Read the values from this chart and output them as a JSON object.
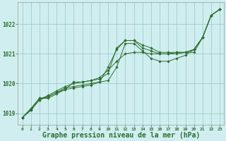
{
  "background_color": "#d0eef0",
  "grid_color": "#a0cccc",
  "line_color": "#2d6e2d",
  "marker_color": "#2d6e2d",
  "xlabel": "Graphe pression niveau de la mer (hPa)",
  "xlabel_fontsize": 7,
  "xlim": [
    -0.5,
    23.5
  ],
  "ylim": [
    1018.6,
    1022.75
  ],
  "yticks": [
    1019,
    1020,
    1021,
    1022
  ],
  "xticks": [
    0,
    1,
    2,
    3,
    4,
    5,
    6,
    7,
    8,
    9,
    10,
    11,
    12,
    13,
    14,
    15,
    16,
    17,
    18,
    19,
    20,
    21,
    22,
    23
  ],
  "series": [
    [
      1018.85,
      1019.1,
      1019.45,
      1019.55,
      1019.7,
      1019.8,
      1019.85,
      1019.9,
      1019.95,
      1020.05,
      1020.55,
      1021.15,
      1021.45,
      1021.45,
      1021.2,
      1021.1,
      1021.0,
      1021.0,
      1021.05,
      1021.05,
      1021.15,
      1021.55,
      1022.3,
      1022.5
    ],
    [
      1018.85,
      1019.1,
      1019.45,
      1019.6,
      1019.75,
      1019.9,
      1020.0,
      1020.05,
      1020.1,
      1020.2,
      1020.45,
      1020.75,
      1021.0,
      1021.05,
      1021.05,
      1021.0,
      1021.0,
      1021.0,
      1021.0,
      1021.05,
      1021.15,
      1021.55,
      1022.3,
      1022.5
    ],
    [
      1018.85,
      1019.15,
      1019.5,
      1019.55,
      1019.7,
      1019.85,
      1019.9,
      1019.95,
      1020.0,
      1020.05,
      1020.1,
      1020.55,
      1021.35,
      1021.35,
      1021.1,
      1020.85,
      1020.75,
      1020.75,
      1020.85,
      1020.95,
      1021.15,
      1021.55,
      1022.3,
      1022.5
    ],
    [
      1018.85,
      1019.15,
      1019.5,
      1019.5,
      1019.65,
      1019.8,
      1020.05,
      1020.05,
      1020.1,
      1020.15,
      1020.35,
      1021.2,
      1021.45,
      1021.45,
      1021.3,
      1021.2,
      1021.05,
      1021.05,
      1021.05,
      1021.05,
      1021.05,
      1021.55,
      1022.3,
      1022.5
    ]
  ]
}
